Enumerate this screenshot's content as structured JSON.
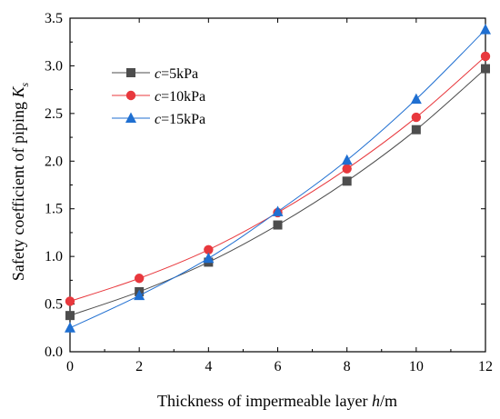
{
  "chart_data": {
    "type": "line",
    "title": "",
    "xlabel_parts": [
      "Thickness of impermeable layer ",
      "h",
      "/m"
    ],
    "ylabel_parts": [
      "Safety coefficient of piping ",
      "K",
      "s"
    ],
    "xlim": [
      0,
      12
    ],
    "ylim": [
      0,
      3.5
    ],
    "xticks": [
      0,
      2,
      4,
      6,
      8,
      10,
      12
    ],
    "yticks": [
      0.0,
      0.5,
      1.0,
      1.5,
      2.0,
      2.5,
      3.0,
      3.5
    ],
    "ytick_labels": [
      "0.0",
      "0.5",
      "1.0",
      "1.5",
      "2.0",
      "2.5",
      "3.0",
      "3.5"
    ],
    "grid": false,
    "legend_position": "top-left",
    "x": [
      0,
      2,
      4,
      6,
      8,
      10,
      12
    ],
    "series": [
      {
        "name_var": "c",
        "name_rest": "=5kPa",
        "color": "#4d4d4d",
        "marker": "square",
        "values": [
          0.38,
          0.63,
          0.94,
          1.33,
          1.79,
          2.33,
          2.97
        ]
      },
      {
        "name_var": "c",
        "name_rest": "=10kPa",
        "color": "#e8383d",
        "marker": "circle",
        "values": [
          0.53,
          0.77,
          1.07,
          1.46,
          1.92,
          2.46,
          3.1
        ]
      },
      {
        "name_var": "c",
        "name_rest": "=15kPa",
        "color": "#1f6fd1",
        "marker": "triangle",
        "values": [
          0.25,
          0.59,
          0.98,
          1.47,
          2.01,
          2.65,
          3.38
        ]
      }
    ]
  }
}
